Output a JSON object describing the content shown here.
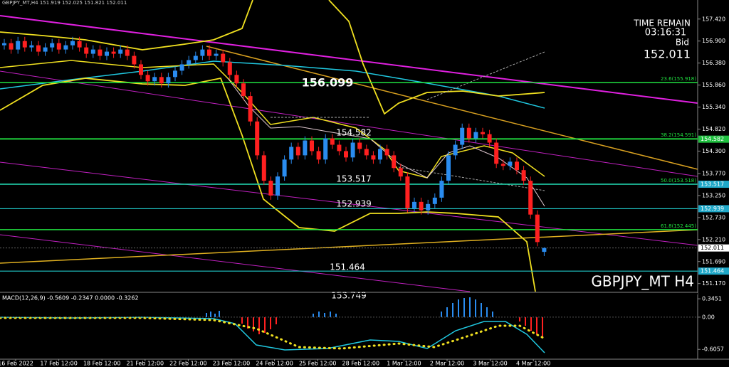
{
  "chart_data": {
    "type": "candlestick",
    "header": "GBPJPY_MT,H4 151.919 152.025 151.821 152.011",
    "symbol_label": "GBPJPY_MT H4",
    "info": [
      "TIME REMAIN",
      "03:16:31",
      "Bid",
      "152.011"
    ],
    "categories": [
      "16 Feb 2022",
      "17 Feb 12:00",
      "18 Feb 12:00",
      "21 Feb 12:00",
      "22 Feb 12:00",
      "23 Feb 12:00",
      "24 Feb 12:00",
      "25 Feb 12:00",
      "28 Feb 12:00",
      "1 Mar 12:00",
      "2 Mar 12:00",
      "3 Mar 12:00",
      "4 Mar 12:00"
    ],
    "ylim": [
      150.98,
      157.87
    ],
    "yticks": [
      {
        "value": 157.42,
        "label": "157.420"
      },
      {
        "value": 156.9,
        "label": "156.900"
      },
      {
        "value": 156.38,
        "label": "156.380"
      },
      {
        "value": 155.86,
        "label": "155.860"
      },
      {
        "value": 155.34,
        "label": "155.340"
      },
      {
        "value": 154.82,
        "label": "154.820"
      },
      {
        "value": 154.3,
        "label": "154.300"
      },
      {
        "value": 153.77,
        "label": "153.770"
      },
      {
        "value": 153.25,
        "label": "153.250"
      },
      {
        "value": 152.73,
        "label": "152.730"
      },
      {
        "value": 152.21,
        "label": "152.210"
      },
      {
        "value": 151.69,
        "label": "151.690"
      },
      {
        "value": 151.17,
        "label": "151.170"
      }
    ],
    "up_color": "#2a8cf0",
    "down_color": "#ff2020",
    "open": [
      156.8,
      156.85,
      156.7,
      156.9,
      156.75,
      156.8,
      156.65,
      156.75,
      156.85,
      156.7,
      156.8,
      156.9,
      156.75,
      156.6,
      156.7,
      156.55,
      156.65,
      156.6,
      156.7,
      156.55,
      156.35,
      156.1,
      155.95,
      156.05,
      155.9,
      156.05,
      156.2,
      156.35,
      156.45,
      156.55,
      156.7,
      156.55,
      156.6,
      156.4,
      156.1,
      155.9,
      155.6,
      155.0,
      154.2,
      153.6,
      153.25,
      153.7,
      154.1,
      154.4,
      154.2,
      154.55,
      154.3,
      154.1,
      154.6,
      154.45,
      154.3,
      154.15,
      154.5,
      154.35,
      154.2,
      154.1,
      154.35,
      154.2,
      153.9,
      153.7,
      152.95,
      153.1,
      152.9,
      153.05,
      153.2,
      153.6,
      154.2,
      154.45,
      154.85,
      154.6,
      154.75,
      154.7,
      154.5,
      154.0,
      153.95,
      154.05,
      153.85,
      153.6,
      152.8,
      151.919
    ],
    "high": [
      156.95,
      156.95,
      157.0,
      157.0,
      156.9,
      156.9,
      156.85,
      156.95,
      156.95,
      156.9,
      157.0,
      157.0,
      156.85,
      156.8,
      156.8,
      156.75,
      156.75,
      156.8,
      156.8,
      156.65,
      156.45,
      156.2,
      156.15,
      156.15,
      156.15,
      156.3,
      156.45,
      156.55,
      156.65,
      156.8,
      156.8,
      156.7,
      156.7,
      156.5,
      156.2,
      156.0,
      155.7,
      155.1,
      154.3,
      153.7,
      153.8,
      154.2,
      154.5,
      154.5,
      154.65,
      154.65,
      154.4,
      154.7,
      154.7,
      154.55,
      154.4,
      154.6,
      154.6,
      154.45,
      154.3,
      154.45,
      154.45,
      154.3,
      154.0,
      153.8,
      153.2,
      153.2,
      153.15,
      153.3,
      153.7,
      154.3,
      154.55,
      154.95,
      154.95,
      154.85,
      154.85,
      154.8,
      154.6,
      154.1,
      154.15,
      154.15,
      153.95,
      153.7,
      152.9,
      152.025
    ],
    "low": [
      156.7,
      156.6,
      156.6,
      156.65,
      156.65,
      156.55,
      156.55,
      156.65,
      156.6,
      156.6,
      156.7,
      156.65,
      156.5,
      156.5,
      156.45,
      156.45,
      156.5,
      156.5,
      156.45,
      156.25,
      156.0,
      155.85,
      155.85,
      155.8,
      155.8,
      155.95,
      156.1,
      156.25,
      156.35,
      156.45,
      156.45,
      156.45,
      156.3,
      156.0,
      155.8,
      155.5,
      154.9,
      154.1,
      153.5,
      153.15,
      153.15,
      153.6,
      154.0,
      154.1,
      154.1,
      154.2,
      154.0,
      154.0,
      154.35,
      154.2,
      154.05,
      154.05,
      154.25,
      154.1,
      154.0,
      154.0,
      154.1,
      153.8,
      153.6,
      152.85,
      152.85,
      152.8,
      152.8,
      152.95,
      153.1,
      153.5,
      154.1,
      154.35,
      154.5,
      154.5,
      154.6,
      154.4,
      153.9,
      153.85,
      153.85,
      153.75,
      153.5,
      152.7,
      152.05,
      151.821
    ],
    "close": [
      156.85,
      156.7,
      156.9,
      156.75,
      156.8,
      156.65,
      156.75,
      156.85,
      156.7,
      156.8,
      156.9,
      156.75,
      156.6,
      156.7,
      156.55,
      156.65,
      156.6,
      156.7,
      156.55,
      156.35,
      156.1,
      155.95,
      156.05,
      155.9,
      156.05,
      156.2,
      156.35,
      156.45,
      156.55,
      156.7,
      156.55,
      156.6,
      156.4,
      156.1,
      155.9,
      155.6,
      155.0,
      154.2,
      153.6,
      153.25,
      153.7,
      154.1,
      154.4,
      154.2,
      154.55,
      154.3,
      154.1,
      154.6,
      154.45,
      154.3,
      154.15,
      154.5,
      154.35,
      154.2,
      154.1,
      154.35,
      154.2,
      153.9,
      153.7,
      152.95,
      153.1,
      152.9,
      153.05,
      153.2,
      153.6,
      154.2,
      154.45,
      154.85,
      154.6,
      154.75,
      154.7,
      154.5,
      154.0,
      153.95,
      154.05,
      153.85,
      153.6,
      152.8,
      152.15,
      152.011
    ],
    "fib_levels": [
      {
        "value": 155.918,
        "label": "23.6(155.918)"
      },
      {
        "value": 154.591,
        "label": "38.2(154.591)"
      },
      {
        "value": 153.518,
        "label": "50.0(153.518)"
      },
      {
        "value": 152.445,
        "label": "61.8(152.445)"
      }
    ],
    "price_lines": [
      154.582,
      153.517,
      152.939,
      151.464
    ],
    "bid": 152.011,
    "annotations": [
      "156.099",
      "154.582",
      "153.517",
      "152.939",
      "151.464",
      "153.749"
    ],
    "macd": {
      "label": "MACD(12,26,9) -0.5609 -0.2347 0.0000 -0.3262",
      "ylim": [
        -0.79,
        0.44
      ],
      "yticks": [
        0.3451,
        {
          "value": 0,
          "label": "0.00"
        },
        -0.6057
      ]
    }
  }
}
